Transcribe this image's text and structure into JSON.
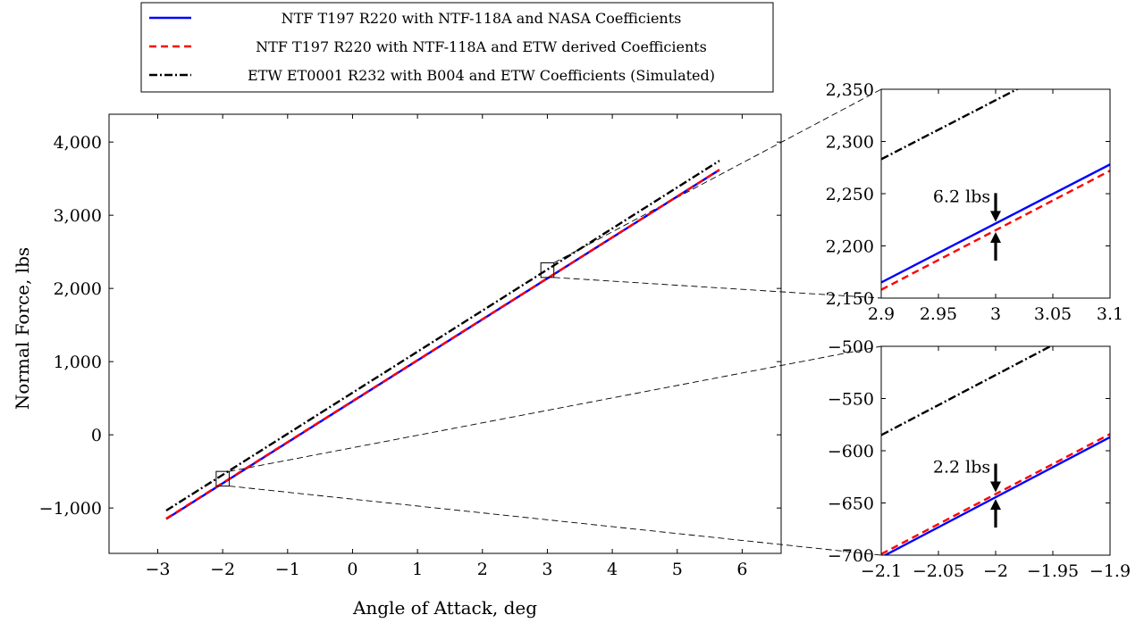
{
  "colors": {
    "nasa": "#0000ff",
    "etw_derived": "#ff0000",
    "etw_simulated": "#000000",
    "frame": "#000000",
    "connector": "#000000"
  },
  "chart_data": [
    {
      "id": "main",
      "type": "line",
      "title": "",
      "xlabel": "Angle of Attack, deg",
      "ylabel": "Normal Force, lbs",
      "xlim": [
        -3.75,
        6.6
      ],
      "ylim": [
        -1620,
        4380
      ],
      "xticks": [
        -3,
        -2,
        -1,
        0,
        1,
        2,
        3,
        4,
        5,
        6
      ],
      "xtick_labels": [
        "−3",
        "−2",
        "−1",
        "0",
        "1",
        "2",
        "3",
        "4",
        "5",
        "6"
      ],
      "yticks": [
        -1000,
        0,
        1000,
        2000,
        3000,
        4000
      ],
      "ytick_labels": [
        "−1,000",
        "0",
        "1,000",
        "2,000",
        "3,000",
        "4,000"
      ],
      "grid": false,
      "legend": "top-left",
      "series": [
        {
          "name": "NTF T197 R220 with NTF-118A and NASA Coefficients",
          "style": "solid",
          "color": "#0000ff",
          "x": [
            -2.87,
            5.65
          ],
          "y": [
            -1150,
            3620
          ]
        },
        {
          "name": "NTF T197 R220 with NTF-118A and ETW derived Coefficients",
          "style": "dashed",
          "color": "#ff0000",
          "x": [
            -2.87,
            5.65
          ],
          "y": [
            -1145,
            3622
          ]
        },
        {
          "name": "ETW ET0001 R232 with B004 and ETW Coefficients (Simulated)",
          "style": "dashdot",
          "color": "#000000",
          "x": [
            -2.87,
            5.65
          ],
          "y": [
            -1035,
            3745
          ]
        }
      ]
    },
    {
      "id": "zoom_top",
      "type": "line",
      "xlim": [
        2.9,
        3.1
      ],
      "ylim": [
        2150,
        2350
      ],
      "xticks": [
        2.9,
        2.95,
        3,
        3.05,
        3.1
      ],
      "xtick_labels": [
        "2.9",
        "2.95",
        "3",
        "3.05",
        "3.1"
      ],
      "yticks": [
        2150,
        2200,
        2250,
        2300,
        2350
      ],
      "ytick_labels": [
        "2,150",
        "2,200",
        "2,250",
        "2,300",
        "2,350"
      ],
      "annotation": "6.2 lbs",
      "annotation_x": 3,
      "series": [
        {
          "color": "#0000ff",
          "style": "solid",
          "x": [
            2.9,
            3.1
          ],
          "y": [
            2165,
            2278
          ]
        },
        {
          "color": "#ff0000",
          "style": "dashed",
          "x": [
            2.9,
            3.1
          ],
          "y": [
            2158,
            2272
          ]
        },
        {
          "color": "#000000",
          "style": "dashdot",
          "x": [
            2.9,
            3.1
          ],
          "y": [
            2283,
            2396
          ]
        }
      ]
    },
    {
      "id": "zoom_bottom",
      "type": "line",
      "xlim": [
        -2.1,
        -1.9
      ],
      "ylim": [
        -700,
        -500
      ],
      "xticks": [
        -2.1,
        -2.05,
        -2,
        -1.95,
        -1.9
      ],
      "xtick_labels": [
        "−2.1",
        "−2.05",
        "−2",
        "−1.95",
        "−1.9"
      ],
      "yticks": [
        -700,
        -650,
        -600,
        -550,
        -500
      ],
      "ytick_labels": [
        "−700",
        "−650",
        "−600",
        "−550",
        "−500"
      ],
      "annotation": "2.2 lbs",
      "annotation_x": -2,
      "series": [
        {
          "color": "#0000ff",
          "style": "solid",
          "x": [
            -2.1,
            -1.9
          ],
          "y": [
            -702,
            -587
          ]
        },
        {
          "color": "#ff0000",
          "style": "dashed",
          "x": [
            -2.1,
            -1.9
          ],
          "y": [
            -699,
            -584
          ]
        },
        {
          "color": "#000000",
          "style": "dashdot",
          "x": [
            -2.1,
            -1.9
          ],
          "y": [
            -585,
            -470
          ]
        }
      ]
    }
  ]
}
